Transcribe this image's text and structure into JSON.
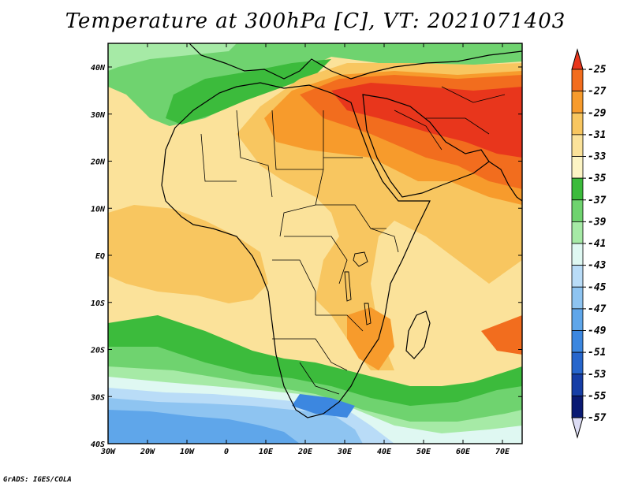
{
  "title": "Temperature at 300hPa [C], VT: 2021071403",
  "credit": "GrADS: IGES/COLA",
  "map": {
    "lon_ticks": [
      "30W",
      "20W",
      "10W",
      "0",
      "10E",
      "20E",
      "30E",
      "40E",
      "50E",
      "60E",
      "70E"
    ],
    "lat_ticks": [
      "40N",
      "30N",
      "20N",
      "10N",
      "EQ",
      "10S",
      "20S",
      "30S",
      "40S"
    ]
  },
  "colorbar": {
    "levels": [
      "-25",
      "-27",
      "-29",
      "-31",
      "-33",
      "-35",
      "-37",
      "-39",
      "-41",
      "-43",
      "-45",
      "-47",
      "-49",
      "-51",
      "-53",
      "-55",
      "-57"
    ],
    "colors": [
      "#e8361c",
      "#f26d1e",
      "#f79b2c",
      "#f8c660",
      "#fbe29a",
      "#fcf4c4",
      "#3cbb3c",
      "#6fd36f",
      "#a6eaa6",
      "#dff8f2",
      "#b9dcf7",
      "#8ec4f1",
      "#5fa6ea",
      "#3c87e0",
      "#2766cc",
      "#163ea6",
      "#0a1a73"
    ],
    "top_color": "#e8361c",
    "bottom_color": "#dcdcf4"
  }
}
